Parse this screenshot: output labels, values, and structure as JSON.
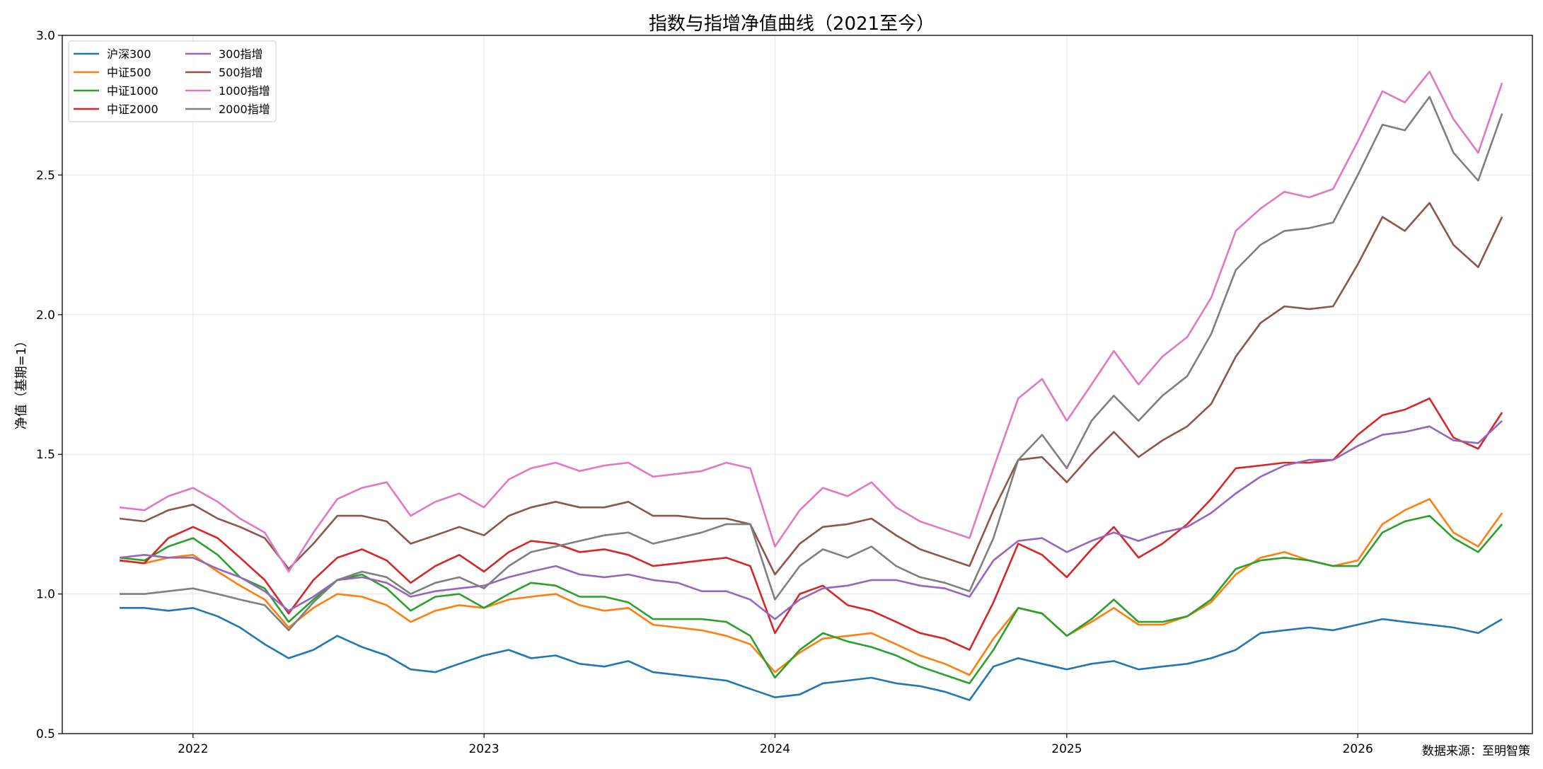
{
  "chart_data": {
    "type": "line",
    "title": "指数与指增净值曲线（2021至今）",
    "xlabel": "",
    "ylabel": "净值（基期=1）",
    "source": "数据来源：至明智策",
    "xlim": [
      "2021-07-21",
      "2026-08-08"
    ],
    "ylim": [
      0.5,
      3.0
    ],
    "yticks": [
      "0.5",
      "1.0",
      "1.5",
      "2.0",
      "2.5",
      "3.0"
    ],
    "ytick_values": [
      0.5,
      1.0,
      1.5,
      2.0,
      2.5,
      3.0
    ],
    "xticks": [
      "2022",
      "2023",
      "2024",
      "2025",
      "2026"
    ],
    "xtick_dates": [
      "2022-01-01",
      "2023-01-01",
      "2024-01-01",
      "2025-01-01",
      "2026-01-01"
    ],
    "grid": true,
    "legend_position": "top-left",
    "x": [
      "2021-10-01",
      "2021-11-01",
      "2021-12-01",
      "2022-01-01",
      "2022-02-01",
      "2022-03-01",
      "2022-04-01",
      "2022-05-01",
      "2022-06-01",
      "2022-07-01",
      "2022-08-01",
      "2022-09-01",
      "2022-10-01",
      "2022-11-01",
      "2022-12-01",
      "2023-01-01",
      "2023-02-01",
      "2023-03-01",
      "2023-04-01",
      "2023-05-01",
      "2023-06-01",
      "2023-07-01",
      "2023-08-01",
      "2023-09-01",
      "2023-10-01",
      "2023-11-01",
      "2023-12-01",
      "2024-01-01",
      "2024-02-01",
      "2024-03-01",
      "2024-04-01",
      "2024-05-01",
      "2024-06-01",
      "2024-07-01",
      "2024-08-01",
      "2024-09-01",
      "2024-10-01",
      "2024-11-01",
      "2024-12-01",
      "2025-01-01",
      "2025-02-01",
      "2025-03-01",
      "2025-04-01",
      "2025-05-01",
      "2025-06-01",
      "2025-07-01",
      "2025-08-01",
      "2025-09-01",
      "2025-10-01",
      "2025-11-01",
      "2025-12-01",
      "2026-01-01",
      "2026-02-01",
      "2026-03-01",
      "2026-04-01",
      "2026-05-01",
      "2026-06-01",
      "2026-07-01"
    ],
    "series": [
      {
        "name": "沪深300",
        "color": "#1f77b4",
        "values": [
          0.95,
          0.95,
          0.94,
          0.95,
          0.92,
          0.88,
          0.82,
          0.77,
          0.8,
          0.85,
          0.81,
          0.78,
          0.73,
          0.72,
          0.75,
          0.78,
          0.8,
          0.77,
          0.78,
          0.75,
          0.74,
          0.76,
          0.72,
          0.71,
          0.7,
          0.69,
          0.66,
          0.63,
          0.64,
          0.68,
          0.69,
          0.7,
          0.68,
          0.67,
          0.65,
          0.62,
          0.74,
          0.77,
          0.75,
          0.73,
          0.75,
          0.76,
          0.73,
          0.74,
          0.75,
          0.77,
          0.8,
          0.86,
          0.87,
          0.88,
          0.87,
          0.89,
          0.91,
          0.9,
          0.89,
          0.88,
          0.86,
          0.91
        ]
      },
      {
        "name": "中证500",
        "color": "#ff7f0e",
        "values": [
          1.12,
          1.11,
          1.13,
          1.14,
          1.08,
          1.03,
          0.98,
          0.88,
          0.95,
          1.0,
          0.99,
          0.96,
          0.9,
          0.94,
          0.96,
          0.95,
          0.98,
          0.99,
          1.0,
          0.96,
          0.94,
          0.95,
          0.89,
          0.88,
          0.87,
          0.85,
          0.82,
          0.72,
          0.79,
          0.84,
          0.85,
          0.86,
          0.82,
          0.78,
          0.75,
          0.71,
          0.84,
          0.95,
          0.93,
          0.85,
          0.9,
          0.95,
          0.89,
          0.89,
          0.92,
          0.97,
          1.07,
          1.13,
          1.15,
          1.12,
          1.1,
          1.12,
          1.25,
          1.3,
          1.34,
          1.22,
          1.17,
          1.29
        ]
      },
      {
        "name": "中证1000",
        "color": "#2ca02c",
        "values": [
          1.13,
          1.12,
          1.17,
          1.2,
          1.14,
          1.06,
          1.02,
          0.9,
          0.98,
          1.05,
          1.07,
          1.02,
          0.94,
          0.99,
          1.0,
          0.95,
          1.0,
          1.04,
          1.03,
          0.99,
          0.99,
          0.97,
          0.91,
          0.91,
          0.91,
          0.9,
          0.85,
          0.7,
          0.8,
          0.86,
          0.83,
          0.81,
          0.78,
          0.74,
          0.71,
          0.68,
          0.8,
          0.95,
          0.93,
          0.85,
          0.91,
          0.98,
          0.9,
          0.9,
          0.92,
          0.98,
          1.09,
          1.12,
          1.13,
          1.12,
          1.1,
          1.1,
          1.22,
          1.26,
          1.28,
          1.2,
          1.15,
          1.25
        ]
      },
      {
        "name": "中证2000",
        "color": "#d62728",
        "values": [
          1.12,
          1.11,
          1.2,
          1.24,
          1.2,
          1.13,
          1.05,
          0.93,
          1.05,
          1.13,
          1.16,
          1.12,
          1.04,
          1.1,
          1.14,
          1.08,
          1.15,
          1.19,
          1.18,
          1.15,
          1.16,
          1.14,
          1.1,
          1.11,
          1.12,
          1.13,
          1.1,
          0.86,
          1.0,
          1.03,
          0.96,
          0.94,
          0.9,
          0.86,
          0.84,
          0.8,
          0.97,
          1.18,
          1.14,
          1.06,
          1.16,
          1.24,
          1.13,
          1.18,
          1.25,
          1.34,
          1.45,
          1.46,
          1.47,
          1.47,
          1.48,
          1.57,
          1.64,
          1.66,
          1.7,
          1.56,
          1.52,
          1.65
        ]
      },
      {
        "name": "300指增",
        "color": "#9467bd",
        "values": [
          1.13,
          1.14,
          1.13,
          1.13,
          1.09,
          1.06,
          1.01,
          0.94,
          0.99,
          1.05,
          1.06,
          1.04,
          0.99,
          1.01,
          1.02,
          1.03,
          1.06,
          1.08,
          1.1,
          1.07,
          1.06,
          1.07,
          1.05,
          1.04,
          1.01,
          1.01,
          0.98,
          0.91,
          0.98,
          1.02,
          1.03,
          1.05,
          1.05,
          1.03,
          1.02,
          0.99,
          1.12,
          1.19,
          1.2,
          1.15,
          1.19,
          1.22,
          1.19,
          1.22,
          1.24,
          1.29,
          1.36,
          1.42,
          1.46,
          1.48,
          1.48,
          1.53,
          1.57,
          1.58,
          1.6,
          1.55,
          1.54,
          1.62
        ]
      },
      {
        "name": "500指增",
        "color": "#8c564b",
        "values": [
          1.27,
          1.26,
          1.3,
          1.32,
          1.27,
          1.24,
          1.2,
          1.09,
          1.18,
          1.28,
          1.28,
          1.26,
          1.18,
          1.21,
          1.24,
          1.21,
          1.28,
          1.31,
          1.33,
          1.31,
          1.31,
          1.33,
          1.28,
          1.28,
          1.27,
          1.27,
          1.25,
          1.07,
          1.18,
          1.24,
          1.25,
          1.27,
          1.21,
          1.16,
          1.13,
          1.1,
          1.3,
          1.48,
          1.49,
          1.4,
          1.5,
          1.58,
          1.49,
          1.55,
          1.6,
          1.68,
          1.85,
          1.97,
          2.03,
          2.02,
          2.03,
          2.18,
          2.35,
          2.3,
          2.4,
          2.25,
          2.17,
          2.35
        ]
      },
      {
        "name": "1000指增",
        "color": "#e377c2",
        "values": [
          1.31,
          1.3,
          1.35,
          1.38,
          1.33,
          1.27,
          1.22,
          1.08,
          1.22,
          1.34,
          1.38,
          1.4,
          1.28,
          1.33,
          1.36,
          1.31,
          1.41,
          1.45,
          1.47,
          1.44,
          1.46,
          1.47,
          1.42,
          1.43,
          1.44,
          1.47,
          1.45,
          1.17,
          1.3,
          1.38,
          1.35,
          1.4,
          1.31,
          1.26,
          1.23,
          1.2,
          1.45,
          1.7,
          1.77,
          1.62,
          1.75,
          1.87,
          1.75,
          1.85,
          1.92,
          2.06,
          2.3,
          2.38,
          2.44,
          2.42,
          2.45,
          2.62,
          2.8,
          2.76,
          2.87,
          2.7,
          2.58,
          2.83
        ]
      },
      {
        "name": "2000指增",
        "color": "#7f7f7f",
        "values": [
          1.0,
          1.0,
          1.01,
          1.02,
          1.0,
          0.98,
          0.96,
          0.87,
          0.97,
          1.05,
          1.08,
          1.06,
          1.0,
          1.04,
          1.06,
          1.02,
          1.1,
          1.15,
          1.17,
          1.19,
          1.21,
          1.22,
          1.18,
          1.2,
          1.22,
          1.25,
          1.25,
          0.98,
          1.1,
          1.16,
          1.13,
          1.17,
          1.1,
          1.06,
          1.04,
          1.01,
          1.2,
          1.48,
          1.57,
          1.45,
          1.62,
          1.71,
          1.62,
          1.71,
          1.78,
          1.93,
          2.16,
          2.25,
          2.3,
          2.31,
          2.33,
          2.5,
          2.68,
          2.66,
          2.78,
          2.58,
          2.48,
          2.72
        ]
      }
    ]
  }
}
